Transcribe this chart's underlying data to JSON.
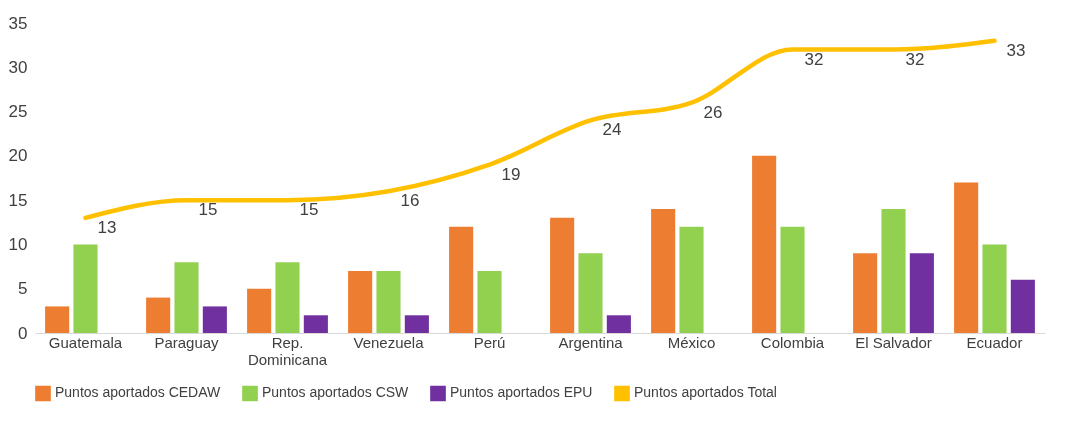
{
  "chart_data": {
    "type": "bar",
    "categories": [
      "Guatemala",
      "Paraguay",
      "Rep. Dominicana",
      "Venezuela",
      "Perú",
      "Argentina",
      "México",
      "Colombia",
      "El Salvador",
      "Ecuador"
    ],
    "series": [
      {
        "name": "Puntos aportados CEDAW",
        "color": "#ed7d31",
        "values": [
          3,
          4,
          5,
          7,
          12,
          13,
          14,
          20,
          9,
          17
        ]
      },
      {
        "name": "Puntos aportados CSW",
        "color": "#92d050",
        "values": [
          10,
          8,
          8,
          7,
          7,
          9,
          12,
          12,
          14,
          10
        ]
      },
      {
        "name": "Puntos aportados EPU",
        "color": "#7030a0",
        "values": [
          0,
          3,
          2,
          2,
          0,
          2,
          0,
          0,
          9,
          6
        ]
      },
      {
        "name": "Puntos aportados Total",
        "type": "line",
        "color": "#ffc000",
        "values": [
          13,
          15,
          15,
          16,
          19,
          24,
          26,
          32,
          32,
          33
        ],
        "value_labels": [
          "13",
          "15",
          "15",
          "16",
          "19",
          "24",
          "26",
          "32",
          "32",
          "33"
        ]
      }
    ],
    "ylim": [
      0,
      35
    ],
    "yticks": [
      0,
      5,
      10,
      15,
      20,
      25,
      30,
      35
    ],
    "grid": false,
    "legend": "bottom"
  }
}
